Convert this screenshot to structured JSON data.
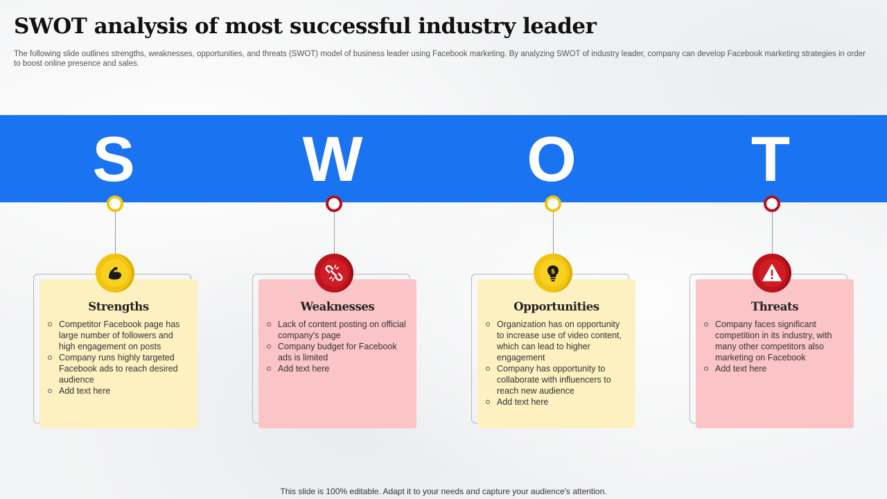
{
  "title": "SWOT analysis of most successful industry leader",
  "subtitle": "The following slide outlines strengths, weaknesses, opportunities, and threats (SWOT) model of business leader using Facebook marketing. By analyzing SWOT of industry leader, company can develop Facebook marketing strategies in order to boost online presence and sales.",
  "colors": {
    "band": "#1a73f0",
    "yellow": "#f1c40f",
    "red": "#c0141c",
    "card_yellow": "#fdf1c1",
    "card_pink": "#fbc4c7"
  },
  "quadrants": [
    {
      "letter": "S",
      "heading": "Strengths",
      "icon": "flexed-bicep-icon",
      "items": [
        "Competitor Facebook page has large number of followers and high engagement on posts",
        "Company runs highly targeted Facebook ads to reach desired audience",
        "Add text here"
      ]
    },
    {
      "letter": "W",
      "heading": "Weaknesses",
      "icon": "broken-link-icon",
      "items": [
        "Lack of content posting on official company's page",
        "Company budget for Facebook ads is limited",
        "Add text here"
      ]
    },
    {
      "letter": "O",
      "heading": "Opportunities",
      "icon": "lightbulb-dollar-icon",
      "items": [
        "Organization has on opportunity to increase use of video content, which can lead to higher engagement",
        "Company has opportunity to collaborate with influencers to reach new audience",
        "Add text here"
      ]
    },
    {
      "letter": "T",
      "heading": "Threats",
      "icon": "warning-triangle-icon",
      "items": [
        "Company faces significant competition in its industry, with many other competitors also marketing on Facebook",
        "Add text here"
      ]
    }
  ],
  "footer": "This slide is 100% editable. Adapt it to your needs and capture your audience's attention."
}
